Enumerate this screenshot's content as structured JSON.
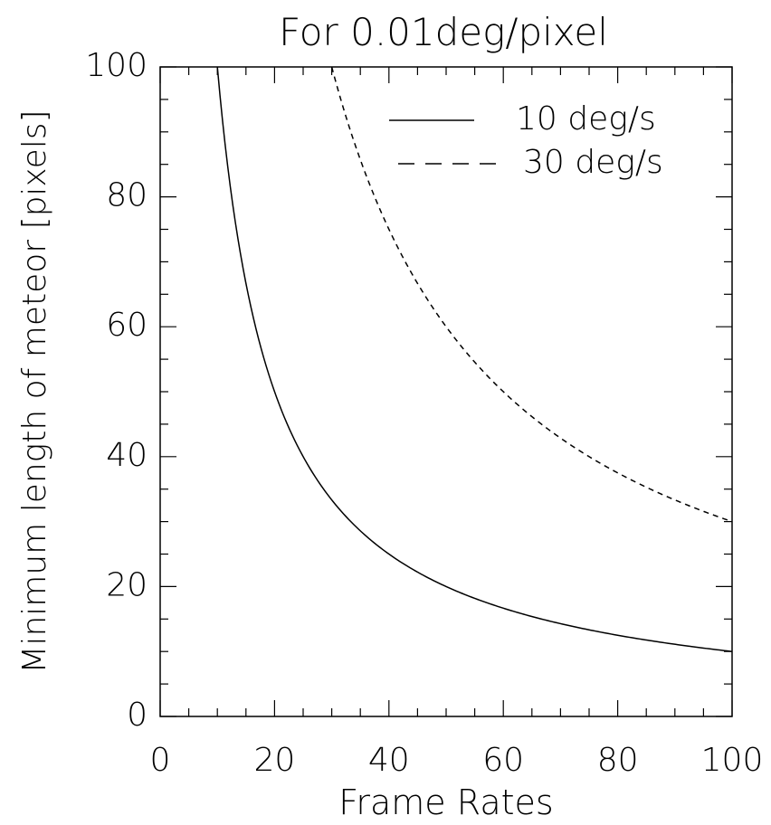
{
  "chart_data": {
    "type": "line",
    "title": "For 0.01deg/pixel",
    "xlabel": "Frame Rates",
    "ylabel": "Minimum length of meteor [pixels]",
    "xlim": [
      0,
      100
    ],
    "ylim": [
      0,
      100
    ],
    "xticks": [
      "0",
      "20",
      "40",
      "60",
      "80",
      "100"
    ],
    "yticks": [
      "0",
      "20",
      "40",
      "60",
      "80",
      "100"
    ],
    "grid": false,
    "legend_position": "top-right",
    "series": [
      {
        "name": "10 deg/s",
        "style": "solid",
        "color": "#000000",
        "x": [
          10,
          12,
          15,
          20,
          25,
          30,
          40,
          50,
          60,
          70,
          80,
          90,
          100
        ],
        "y": [
          100,
          83.3,
          66.7,
          50,
          40,
          33.3,
          25,
          20,
          16.7,
          14.3,
          12.5,
          11.1,
          10
        ]
      },
      {
        "name": "30 deg/s",
        "style": "dashed",
        "color": "#000000",
        "x": [
          30,
          35,
          40,
          45,
          50,
          60,
          70,
          80,
          90,
          100
        ],
        "y": [
          100,
          85.7,
          75,
          66.7,
          60,
          50,
          42.9,
          37.5,
          33.3,
          30
        ]
      }
    ]
  }
}
